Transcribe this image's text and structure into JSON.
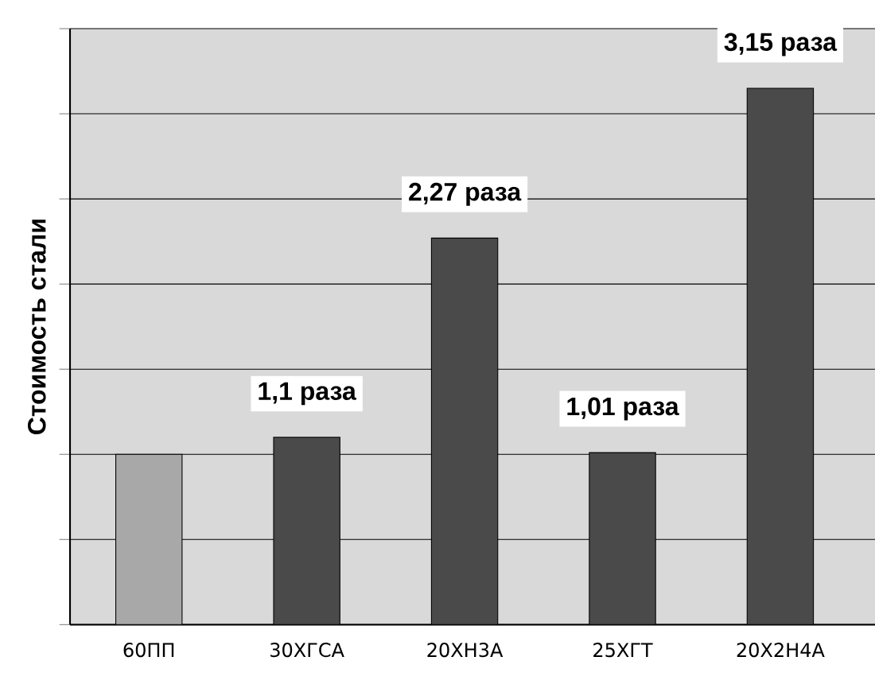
{
  "chart_data": {
    "type": "bar",
    "ylabel": "Стоимость стали",
    "categories": [
      "60ПП",
      "30ХГСА",
      "20ХН3А",
      "25ХГТ",
      "20Х2Н4А"
    ],
    "values": [
      1,
      1.1,
      2.27,
      1.01,
      3.15
    ],
    "colors": [
      "#a8a8a8",
      "#4a4a4a",
      "#4a4a4a",
      "#4a4a4a",
      "#4a4a4a"
    ],
    "value_labels": [
      null,
      "1,1 раза",
      "2,27 раза",
      "1,01 раза",
      "3,15 раза"
    ],
    "ylim": [
      0,
      3.5
    ],
    "yticks": [
      {
        "value": 0,
        "label": null
      },
      {
        "value": 0.5,
        "label": null
      },
      {
        "value": 1,
        "label": null
      },
      {
        "value": 1.5,
        "label": null
      },
      {
        "value": 2,
        "label": null
      },
      {
        "value": 2.5,
        "label": null
      },
      {
        "value": 3,
        "label": null
      },
      {
        "value": 3.5,
        "label": null
      }
    ],
    "grid": "y"
  }
}
